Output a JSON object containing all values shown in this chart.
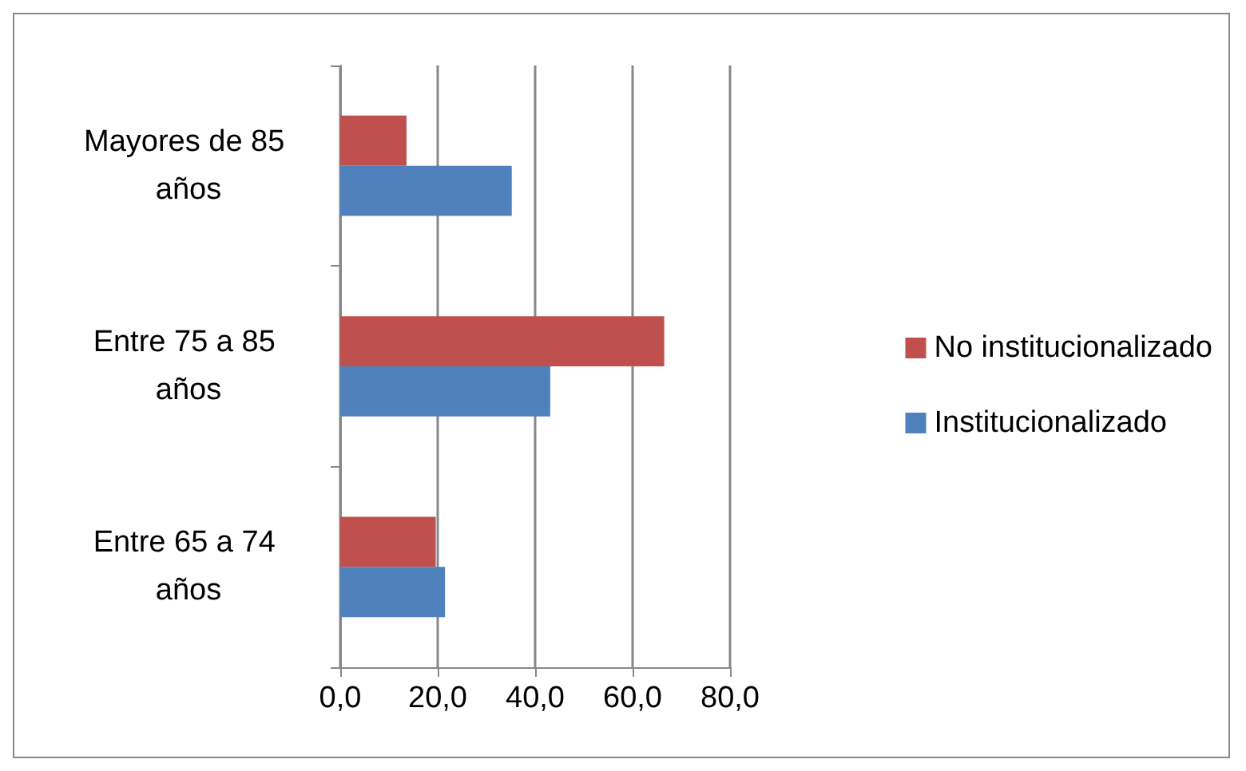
{
  "chart_data": {
    "type": "bar",
    "orientation": "horizontal",
    "categories": [
      "Mayores de 85 años",
      "Entre 75 a 85 años",
      "Entre 65 a 74 años"
    ],
    "series": [
      {
        "name": "No institucionalizado",
        "color": "#c0504d",
        "values": [
          13.6,
          66.5,
          19.6
        ]
      },
      {
        "name": "Institucionalizado",
        "color": "#4f81bd",
        "values": [
          35.2,
          43.1,
          21.5
        ]
      }
    ],
    "xlim": [
      0,
      80
    ],
    "xticks": [
      {
        "value": 0,
        "label": "0,0"
      },
      {
        "value": 20,
        "label": "20,0"
      },
      {
        "value": 40,
        "label": "40,0"
      },
      {
        "value": 60,
        "label": "60,0"
      },
      {
        "value": 80,
        "label": "80,0"
      }
    ],
    "grid": "x",
    "legend": "right"
  }
}
